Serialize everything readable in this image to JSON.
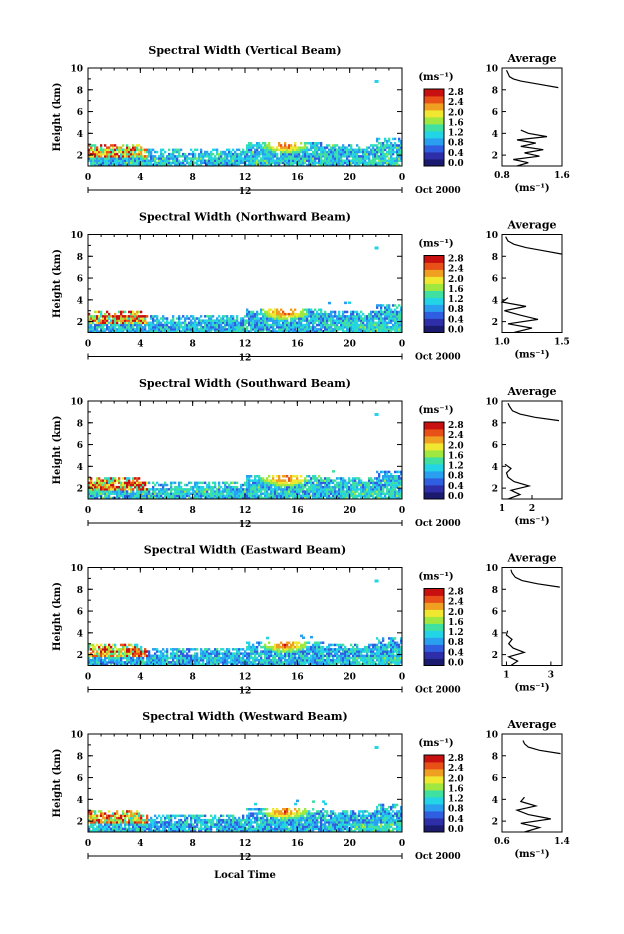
{
  "figure": {
    "x_axis_label": "Local Time",
    "colorbar_unit": "(ms⁻¹)",
    "colorbar_ticks": [
      "0.0",
      "0.4",
      "0.8",
      "1.2",
      "1.6",
      "2.0",
      "2.4",
      "2.8"
    ],
    "profile_unit": "(ms⁻¹)",
    "colormap": [
      "#1a1a6e",
      "#2e2ea8",
      "#2f5fe0",
      "#2a9ff0",
      "#22d4e6",
      "#3fe0a0",
      "#a0e840",
      "#f0e830",
      "#f0a020",
      "#e85018",
      "#c81010"
    ]
  },
  "chart_data": [
    {
      "type": "heatmap",
      "title": "Spectral Width (Vertical Beam)",
      "ylabel": "Height (km)",
      "ylim": [
        1,
        10
      ],
      "yticks": [
        "2",
        "4",
        "6",
        "8",
        "10"
      ],
      "xlim": [
        0,
        24
      ],
      "xticks": [
        "0",
        "4",
        "8",
        "12",
        "16",
        "20",
        "0"
      ],
      "date_label": "12",
      "date_suffix": "Oct 2000",
      "color_range": [
        0.0,
        2.8
      ],
      "features": {
        "base_level": 0.65,
        "low_layer_hot": 2.3,
        "midday_peak_hour": 15,
        "midday_peak": 2.4
      },
      "profile": {
        "title": "Average",
        "xlim": [
          0.8,
          1.6
        ],
        "xticks": [
          "0.8",
          "1.6"
        ],
        "ylim": [
          1,
          10
        ],
        "yticks": [
          "2",
          "4",
          "6",
          "8",
          "10"
        ],
        "heights": [
          1.0,
          1.3,
          1.6,
          1.9,
          2.2,
          2.5,
          2.8,
          3.1,
          3.4,
          3.7,
          4.0,
          4.3,
          8.2,
          8.5,
          8.8,
          9.0,
          9.2,
          9.5,
          9.8
        ],
        "values": [
          1.0,
          1.15,
          0.95,
          1.3,
          1.1,
          1.35,
          1.05,
          1.25,
          1.0,
          1.4,
          1.15,
          1.05,
          1.55,
          1.3,
          1.05,
          0.95,
          0.9,
          0.88,
          0.86
        ]
      }
    },
    {
      "type": "heatmap",
      "title": "Spectral Width (Northward Beam)",
      "ylabel": "Height (km)",
      "ylim": [
        1,
        10
      ],
      "yticks": [
        "2",
        "4",
        "6",
        "8",
        "10"
      ],
      "xlim": [
        0,
        24
      ],
      "xticks": [
        "0",
        "4",
        "8",
        "12",
        "16",
        "20",
        "0"
      ],
      "date_label": "12",
      "date_suffix": "Oct 2000",
      "color_range": [
        0.0,
        2.8
      ],
      "features": {
        "base_level": 0.6,
        "low_layer_hot": 2.4,
        "midday_peak_hour": 15,
        "midday_peak": 2.5
      },
      "profile": {
        "title": "Average",
        "xlim": [
          1.0,
          1.5
        ],
        "xticks": [
          "1.0",
          "1.5"
        ],
        "ylim": [
          1,
          10
        ],
        "yticks": [
          "2",
          "4",
          "6",
          "8",
          "10"
        ],
        "heights": [
          1.0,
          1.4,
          1.8,
          2.2,
          2.6,
          3.0,
          3.4,
          3.8,
          4.2,
          8.2,
          8.5,
          8.8,
          9.1,
          9.4,
          9.8
        ],
        "values": [
          1.1,
          1.25,
          1.05,
          1.3,
          1.15,
          1.02,
          1.2,
          1.0,
          1.05,
          1.5,
          1.35,
          1.2,
          1.1,
          1.05,
          1.03
        ]
      }
    },
    {
      "type": "heatmap",
      "title": "Spectral Width (Southward Beam)",
      "ylabel": "Height (km)",
      "ylim": [
        1,
        10
      ],
      "yticks": [
        "2",
        "4",
        "6",
        "8",
        "10"
      ],
      "xlim": [
        0,
        24
      ],
      "xticks": [
        "0",
        "4",
        "8",
        "12",
        "16",
        "20",
        "0"
      ],
      "date_label": "12",
      "date_suffix": "Oct 2000",
      "color_range": [
        0.0,
        2.8
      ],
      "features": {
        "base_level": 0.65,
        "low_layer_hot": 2.5,
        "midday_peak_hour": 15,
        "midday_peak": 2.5
      },
      "profile": {
        "title": "Average",
        "xlim": [
          1.0,
          3.0
        ],
        "xticks": [
          "1",
          "2"
        ],
        "ylim": [
          1,
          10
        ],
        "yticks": [
          "2",
          "4",
          "6",
          "8",
          "10"
        ],
        "heights": [
          1.0,
          1.4,
          1.8,
          2.2,
          2.6,
          3.0,
          3.4,
          3.8,
          4.2,
          8.2,
          8.5,
          8.8,
          9.1,
          9.5,
          9.8
        ],
        "values": [
          1.2,
          1.6,
          1.3,
          1.9,
          1.4,
          1.2,
          1.15,
          1.3,
          1.1,
          2.9,
          2.1,
          1.6,
          1.35,
          1.25,
          1.2
        ]
      }
    },
    {
      "type": "heatmap",
      "title": "Spectral Width (Eastward Beam)",
      "ylabel": "Height (km)",
      "ylim": [
        1,
        10
      ],
      "yticks": [
        "2",
        "4",
        "6",
        "8",
        "10"
      ],
      "xlim": [
        0,
        24
      ],
      "xticks": [
        "0",
        "4",
        "8",
        "12",
        "16",
        "20",
        "0"
      ],
      "date_label": "12",
      "date_suffix": "Oct 2000",
      "color_range": [
        0.0,
        2.8
      ],
      "features": {
        "base_level": 0.55,
        "low_layer_hot": 2.3,
        "midday_peak_hour": 15,
        "midday_peak": 2.4
      },
      "profile": {
        "title": "Average",
        "xlim": [
          0.8,
          3.5
        ],
        "xticks": [
          "1",
          "3"
        ],
        "ylim": [
          1,
          10
        ],
        "yticks": [
          "2",
          "4",
          "6",
          "8",
          "10"
        ],
        "heights": [
          1.0,
          1.4,
          1.8,
          2.2,
          2.6,
          3.0,
          3.4,
          3.8,
          4.2,
          8.2,
          8.5,
          8.8,
          9.1,
          9.5,
          9.8
        ],
        "values": [
          1.2,
          1.5,
          1.1,
          1.8,
          1.3,
          1.1,
          1.25,
          1.0,
          1.05,
          3.4,
          2.4,
          1.7,
          1.4,
          1.25,
          1.2
        ]
      }
    },
    {
      "type": "heatmap",
      "title": "Spectral Width (Westward Beam)",
      "ylabel": "Height (km)",
      "ylim": [
        1,
        10
      ],
      "yticks": [
        "2",
        "4",
        "6",
        "8",
        "10"
      ],
      "xlim": [
        0,
        24
      ],
      "xticks": [
        "0",
        "4",
        "8",
        "12",
        "16",
        "20",
        "0"
      ],
      "date_label": "12",
      "date_suffix": "Oct 2000",
      "color_range": [
        0.0,
        2.8
      ],
      "features": {
        "base_level": 0.55,
        "low_layer_hot": 2.2,
        "midday_peak_hour": 15,
        "midday_peak": 2.4
      },
      "profile": {
        "title": "Average",
        "xlim": [
          0.6,
          1.4
        ],
        "xticks": [
          "0.6",
          "1.4"
        ],
        "ylim": [
          1,
          10
        ],
        "yticks": [
          "2",
          "4",
          "6",
          "8",
          "10"
        ],
        "heights": [
          1.0,
          1.4,
          1.8,
          2.2,
          2.6,
          3.0,
          3.4,
          3.8,
          4.2,
          8.2,
          8.5,
          8.8,
          9.1,
          9.4
        ],
        "values": [
          0.9,
          1.1,
          0.85,
          1.25,
          0.95,
          0.8,
          1.05,
          0.85,
          0.9,
          1.38,
          1.1,
          0.95,
          0.9,
          0.88
        ]
      }
    }
  ]
}
